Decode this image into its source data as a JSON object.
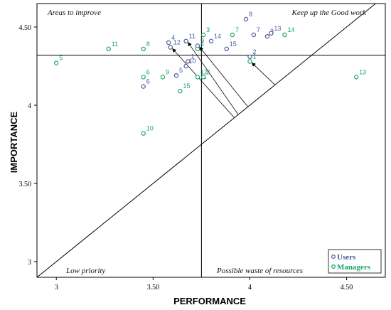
{
  "chart_data": {
    "type": "scatter",
    "xlabel": "PERFORMANCE",
    "ylabel": "IMPORTANCE",
    "xlim": [
      2.9,
      4.7
    ],
    "ylim": [
      2.9,
      4.65
    ],
    "xticks": [
      3.0,
      3.5,
      4.0,
      4.5
    ],
    "xtick_labels": [
      "3",
      "3.50",
      "4",
      "4.50"
    ],
    "yticks": [
      3.0,
      3.5,
      4.0,
      4.5
    ],
    "ytick_labels": [
      "3",
      "3.50",
      "4",
      "4.50"
    ],
    "grid": false,
    "legend_position": "bottom-right",
    "reference_lines": {
      "performance_mean": 3.75,
      "importance_mean": 4.32
    },
    "quadrants": {
      "top_left": "Areas to improve",
      "top_right": "Keep up the Good work",
      "bottom_left": "Low priority",
      "bottom_right": "Possible waste of resources"
    },
    "colors": {
      "users": "#4a5a9e",
      "managers": "#1aa36b"
    },
    "series": [
      {
        "name": "Users",
        "points": [
          {
            "label": "1",
            "x": 3.68,
            "y": 4.28
          },
          {
            "label": "2",
            "x": 4.0,
            "y": 4.31
          },
          {
            "label": "3",
            "x": 4.09,
            "y": 4.44
          },
          {
            "label": "4",
            "x": 3.58,
            "y": 4.4
          },
          {
            "label": "5",
            "x": 3.62,
            "y": 4.19
          },
          {
            "label": "6",
            "x": 3.45,
            "y": 4.12
          },
          {
            "label": "7",
            "x": 4.02,
            "y": 4.45
          },
          {
            "label": "8",
            "x": 3.98,
            "y": 4.55
          },
          {
            "label": "9",
            "x": 3.73,
            "y": 4.38
          },
          {
            "label": "10",
            "x": 3.67,
            "y": 4.25
          },
          {
            "label": "11",
            "x": 3.67,
            "y": 4.41
          },
          {
            "label": "12",
            "x": 3.59,
            "y": 4.37
          },
          {
            "label": "13",
            "x": 4.11,
            "y": 4.46
          },
          {
            "label": "14",
            "x": 3.8,
            "y": 4.41
          },
          {
            "label": "15",
            "x": 3.88,
            "y": 4.36
          }
        ]
      },
      {
        "name": "Managers",
        "points": [
          {
            "label": "1",
            "x": 4.0,
            "y": 4.28
          },
          {
            "label": "2",
            "x": 3.76,
            "y": 4.18
          },
          {
            "label": "3",
            "x": 3.76,
            "y": 4.45
          },
          {
            "label": "4",
            "x": 3.73,
            "y": 4.36
          },
          {
            "label": "5",
            "x": 3.0,
            "y": 4.27
          },
          {
            "label": "6",
            "x": 3.45,
            "y": 4.18
          },
          {
            "label": "7",
            "x": 3.91,
            "y": 4.45
          },
          {
            "label": "8",
            "x": 3.45,
            "y": 4.36
          },
          {
            "label": "9",
            "x": 3.55,
            "y": 4.18
          },
          {
            "label": "10",
            "x": 3.45,
            "y": 3.82
          },
          {
            "label": "11",
            "x": 3.27,
            "y": 4.36
          },
          {
            "label": "12",
            "x": 3.73,
            "y": 4.18
          },
          {
            "label": "13",
            "x": 4.55,
            "y": 4.18
          },
          {
            "label": "14",
            "x": 4.18,
            "y": 4.45
          },
          {
            "label": "15",
            "x": 3.64,
            "y": 4.09
          }
        ]
      }
    ]
  }
}
